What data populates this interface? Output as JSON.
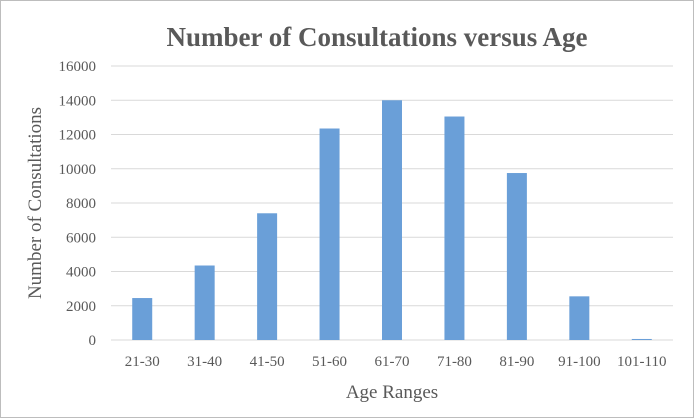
{
  "chart_data": {
    "type": "bar",
    "title": "Number of Consultations versus Age",
    "xlabel": "Age Ranges",
    "ylabel": "Number of Consultations",
    "categories": [
      "21-30",
      "31-40",
      "41-50",
      "51-60",
      "61-70",
      "71-80",
      "81-90",
      "91-100",
      "101-110"
    ],
    "values": [
      2450,
      4350,
      7400,
      12350,
      14000,
      13050,
      9750,
      2550,
      60
    ],
    "ylim": [
      0,
      16000
    ],
    "yticks": [
      0,
      2000,
      4000,
      6000,
      8000,
      10000,
      12000,
      14000,
      16000
    ],
    "grid": true,
    "legend": "none",
    "bar_color": "#6a9fd8"
  }
}
